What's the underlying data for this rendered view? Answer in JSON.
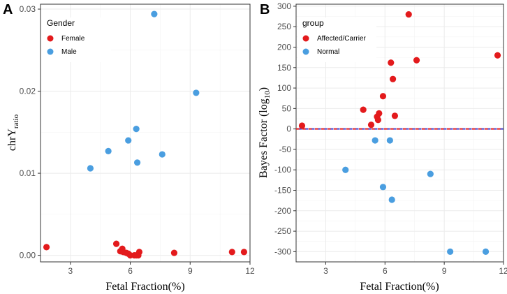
{
  "colors": {
    "female": "#e31a1c",
    "male": "#4a9ee0",
    "affected": "#e31a1c",
    "normal": "#4a9ee0",
    "refline_red": "#e31a1c",
    "refline_blue": "#4040d0"
  },
  "chart_data": [
    {
      "panel": "A",
      "type": "scatter",
      "xlabel": "Fetal Fraction(%)",
      "ylabel": "chrY",
      "ylabel_sub": "ratio",
      "xlim": [
        1.5,
        12.0
      ],
      "ylim": [
        -0.0008,
        0.0306
      ],
      "x_ticks": [
        3,
        6,
        9,
        12
      ],
      "x_tick_labels": [
        "3",
        "6",
        "9",
        "12"
      ],
      "y_ticks": [
        0.0,
        0.01,
        0.02,
        0.03
      ],
      "y_tick_labels": [
        "0.00",
        "0.01",
        "0.02",
        "0.03"
      ],
      "grid": true,
      "legend": {
        "title": "Gender",
        "position": "top-left"
      },
      "series": [
        {
          "name": "Female",
          "color_key": "female",
          "points": [
            {
              "x": 1.8,
              "y": 0.001
            },
            {
              "x": 5.3,
              "y": 0.0014
            },
            {
              "x": 5.5,
              "y": 0.0005
            },
            {
              "x": 5.6,
              "y": 0.0008
            },
            {
              "x": 5.65,
              "y": 0.0004
            },
            {
              "x": 5.8,
              "y": 0.0003
            },
            {
              "x": 5.9,
              "y": 0.0002
            },
            {
              "x": 6.0,
              "y": 0.0
            },
            {
              "x": 6.2,
              "y": 0.0
            },
            {
              "x": 6.3,
              "y": 0.0
            },
            {
              "x": 6.4,
              "y": 0.0
            },
            {
              "x": 6.45,
              "y": 0.0004
            },
            {
              "x": 8.2,
              "y": 0.0003
            },
            {
              "x": 11.1,
              "y": 0.0004
            },
            {
              "x": 11.7,
              "y": 0.0004
            }
          ]
        },
        {
          "name": "Male",
          "color_key": "male",
          "points": [
            {
              "x": 4.0,
              "y": 0.0106
            },
            {
              "x": 4.9,
              "y": 0.0127
            },
            {
              "x": 5.9,
              "y": 0.014
            },
            {
              "x": 6.3,
              "y": 0.0154
            },
            {
              "x": 6.35,
              "y": 0.0113
            },
            {
              "x": 7.2,
              "y": 0.0294
            },
            {
              "x": 7.6,
              "y": 0.0123
            },
            {
              "x": 9.3,
              "y": 0.0198
            }
          ]
        }
      ]
    },
    {
      "panel": "B",
      "type": "scatter",
      "xlabel": "Fetal Fraction(%)",
      "ylabel": "Bayes Factor (log",
      "ylabel_sub": "10",
      "ylabel_end": ")",
      "xlim": [
        1.5,
        12.0
      ],
      "ylim": [
        -325,
        305
      ],
      "x_ticks": [
        3,
        6,
        9,
        12
      ],
      "x_tick_labels": [
        "3",
        "6",
        "9",
        "12"
      ],
      "y_ticks": [
        -300,
        -250,
        -200,
        -150,
        -100,
        -50,
        0,
        50,
        100,
        150,
        200,
        250,
        300
      ],
      "y_tick_labels": [
        "-300",
        "-250",
        "-200",
        "-150",
        "-100",
        "-50",
        "0",
        "50",
        "100",
        "150",
        "200",
        "250",
        "300"
      ],
      "grid": true,
      "reference_line": {
        "y": 0,
        "style": "dashed"
      },
      "legend": {
        "title": "group",
        "position": "top-left"
      },
      "series": [
        {
          "name": "Affected/Carrier",
          "color_key": "affected",
          "points": [
            {
              "x": 1.8,
              "y": 8
            },
            {
              "x": 4.9,
              "y": 47
            },
            {
              "x": 5.3,
              "y": 10
            },
            {
              "x": 5.6,
              "y": 30
            },
            {
              "x": 5.65,
              "y": 22
            },
            {
              "x": 5.7,
              "y": 38
            },
            {
              "x": 5.9,
              "y": 80
            },
            {
              "x": 6.3,
              "y": 162
            },
            {
              "x": 6.4,
              "y": 122
            },
            {
              "x": 6.5,
              "y": 32
            },
            {
              "x": 7.2,
              "y": 280
            },
            {
              "x": 7.6,
              "y": 168
            },
            {
              "x": 11.7,
              "y": 180
            }
          ]
        },
        {
          "name": "Normal",
          "color_key": "normal",
          "points": [
            {
              "x": 4.0,
              "y": -100
            },
            {
              "x": 5.5,
              "y": -28
            },
            {
              "x": 5.9,
              "y": -142
            },
            {
              "x": 6.25,
              "y": -28
            },
            {
              "x": 6.35,
              "y": -173
            },
            {
              "x": 8.3,
              "y": -110
            },
            {
              "x": 9.3,
              "y": -300
            },
            {
              "x": 11.1,
              "y": -300
            }
          ]
        }
      ]
    }
  ]
}
